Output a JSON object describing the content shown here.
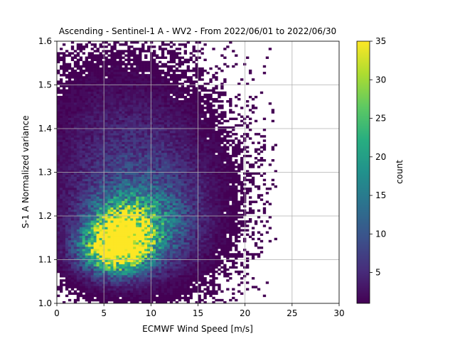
{
  "chart_data": {
    "type": "heatmap",
    "title": "Ascending - Sentinel-1 A - WV2 - From 2022/06/01 to 2022/06/30",
    "xlabel": "ECMWF Wind Speed [m/s]",
    "ylabel": "S-1 A Normalized variance",
    "xlim": [
      0,
      30
    ],
    "ylim": [
      1.0,
      1.6
    ],
    "xticks": [
      0,
      5,
      10,
      15,
      20,
      25,
      30
    ],
    "yticks": [
      1.0,
      1.1,
      1.2,
      1.3,
      1.4,
      1.5,
      1.6
    ],
    "grid": true,
    "colorbar": {
      "label": "count",
      "min": 1,
      "max": 35,
      "ticks": [
        5,
        10,
        15,
        20,
        25,
        30,
        35
      ],
      "colormap": "viridis"
    },
    "density_clusters": [
      {
        "x": 7.0,
        "y": 1.155,
        "peak_count": 31,
        "sx": 2.0,
        "sy": 0.04
      },
      {
        "x": 6.0,
        "y": 1.12,
        "peak_count": 24,
        "sx": 2.4,
        "sy": 0.035
      },
      {
        "x": 8.5,
        "y": 1.18,
        "peak_count": 15,
        "sx": 3.5,
        "sy": 0.06
      },
      {
        "x": 9.0,
        "y": 1.25,
        "peak_count": 6,
        "sx": 5.0,
        "sy": 0.12
      },
      {
        "x": 6.0,
        "y": 1.38,
        "peak_count": 2,
        "sx": 5.5,
        "sy": 0.13
      }
    ],
    "bins": {
      "x_width": 0.3,
      "y_width": 0.005
    }
  }
}
